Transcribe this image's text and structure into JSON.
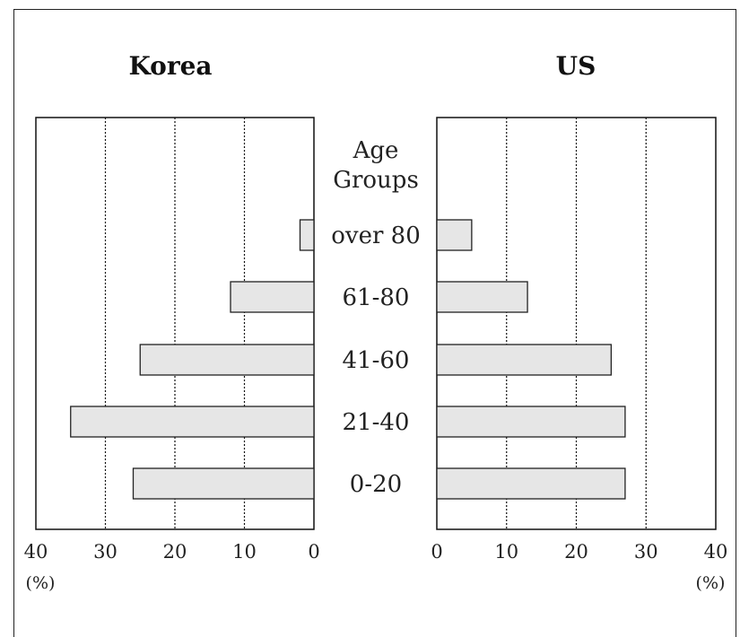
{
  "chart_data": {
    "type": "bar",
    "orientation": "horizontal",
    "layout": "back-to-back population pyramid",
    "center_header": [
      "Age",
      "Groups"
    ],
    "categories": [
      "over 80",
      "61-80",
      "41-60",
      "21-40",
      "0-20"
    ],
    "panels": [
      {
        "title": "Korea",
        "direction": "left",
        "values": [
          2,
          12,
          25,
          35,
          26
        ],
        "ticks": [
          "40",
          "30",
          "20",
          "10",
          "0"
        ],
        "xlim": [
          0,
          40
        ],
        "unit_label": "(%)",
        "grid": "dotted vertical lines at 10, 20, 30"
      },
      {
        "title": "US",
        "direction": "right",
        "values": [
          5,
          13,
          25,
          27,
          27
        ],
        "ticks": [
          "0",
          "10",
          "20",
          "30",
          "40"
        ],
        "xlim": [
          0,
          40
        ],
        "unit_label": "(%)",
        "grid": "dotted vertical lines at 10, 20, 30"
      }
    ],
    "bar_color": "#e6e6e6"
  }
}
